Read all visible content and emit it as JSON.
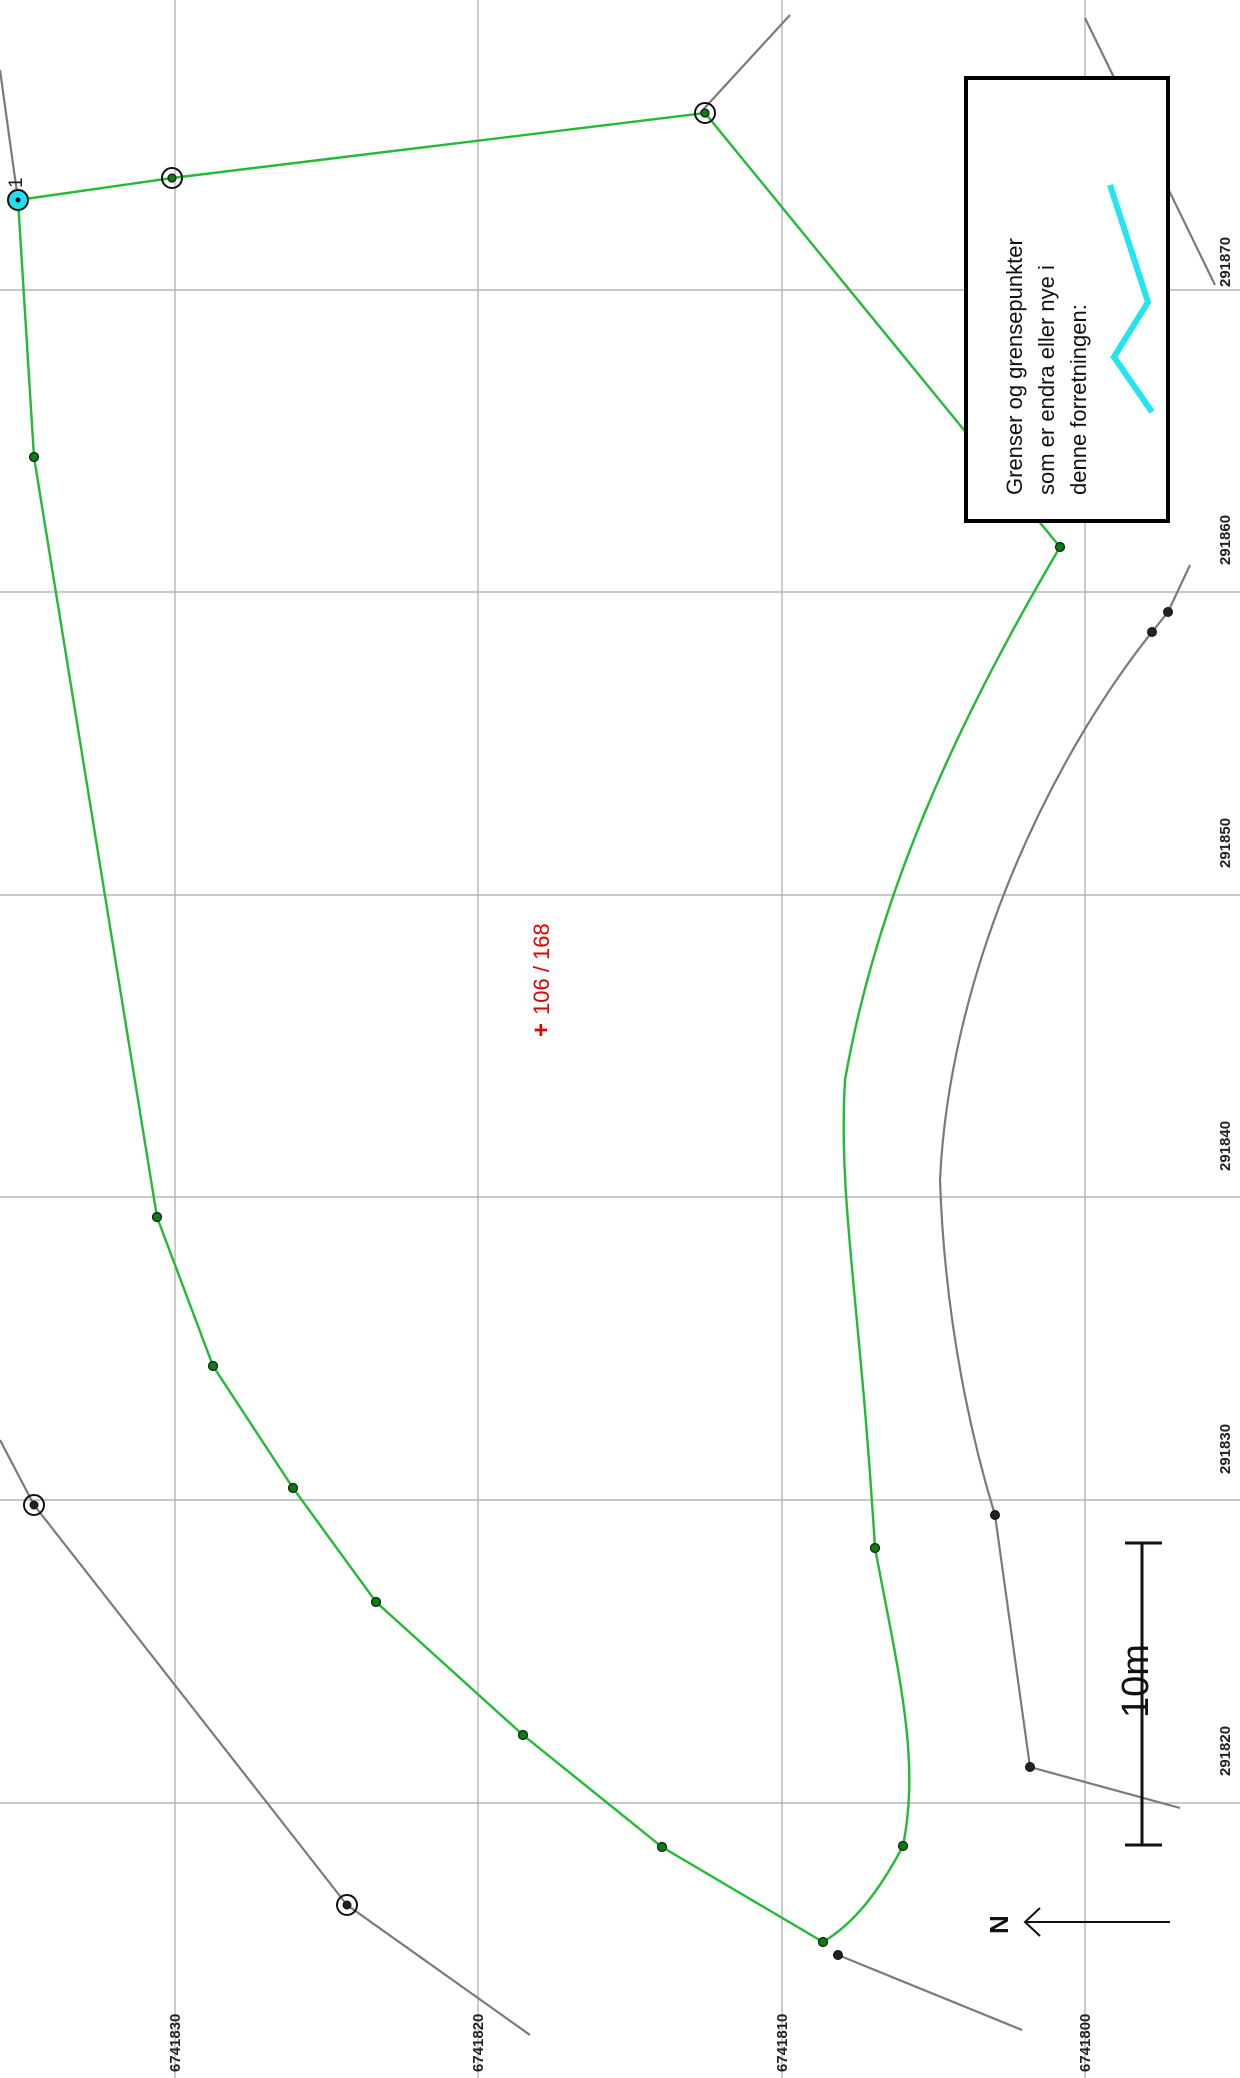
{
  "map": {
    "parcel_label": "106 / 168",
    "parcel_marker": "+",
    "point_label": "1",
    "grid_labels_x": [
      "291820",
      "291830",
      "291840",
      "291850",
      "291860",
      "291870"
    ],
    "grid_labels_y": [
      "6741830",
      "6741820",
      "6741810",
      "6741800"
    ],
    "scale_label": "10m",
    "north_label": "N"
  },
  "legend": {
    "lines": [
      "Grenser og grensepunkter",
      "som er endra eller nye i",
      "denne forretningen:"
    ],
    "symbol_color": "#22e5ef"
  },
  "colors": {
    "boundary_new": "#22bb33",
    "boundary_existing": "#7a7a7a",
    "label_red": "#e00000",
    "grid": "#b5b5b5"
  }
}
